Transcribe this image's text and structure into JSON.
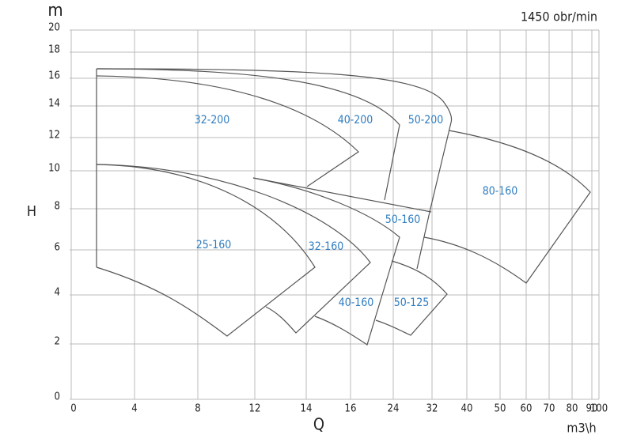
{
  "chart_data": {
    "type": "region-map",
    "title": "1450 obr/min",
    "y_unit": "m",
    "y_label": "H",
    "x_label": "Q",
    "x_unit": "m3\\h",
    "xticks": [
      0,
      4,
      8,
      12,
      14,
      16,
      24,
      32,
      40,
      50,
      60,
      70,
      80,
      90,
      100
    ],
    "yticks": [
      0,
      2,
      4,
      6,
      8,
      10,
      12,
      14,
      16,
      18,
      20
    ],
    "grid": true,
    "outline_color": "#555555",
    "label_color": "#2e7cc0",
    "regions": [
      {
        "label": "32-200"
      },
      {
        "label": "40-200"
      },
      {
        "label": "50-200"
      },
      {
        "label": "80-160"
      },
      {
        "label": "50-160"
      },
      {
        "label": "25-160"
      },
      {
        "label": "32-160"
      },
      {
        "label": "40-160"
      },
      {
        "label": "50-125"
      }
    ]
  }
}
